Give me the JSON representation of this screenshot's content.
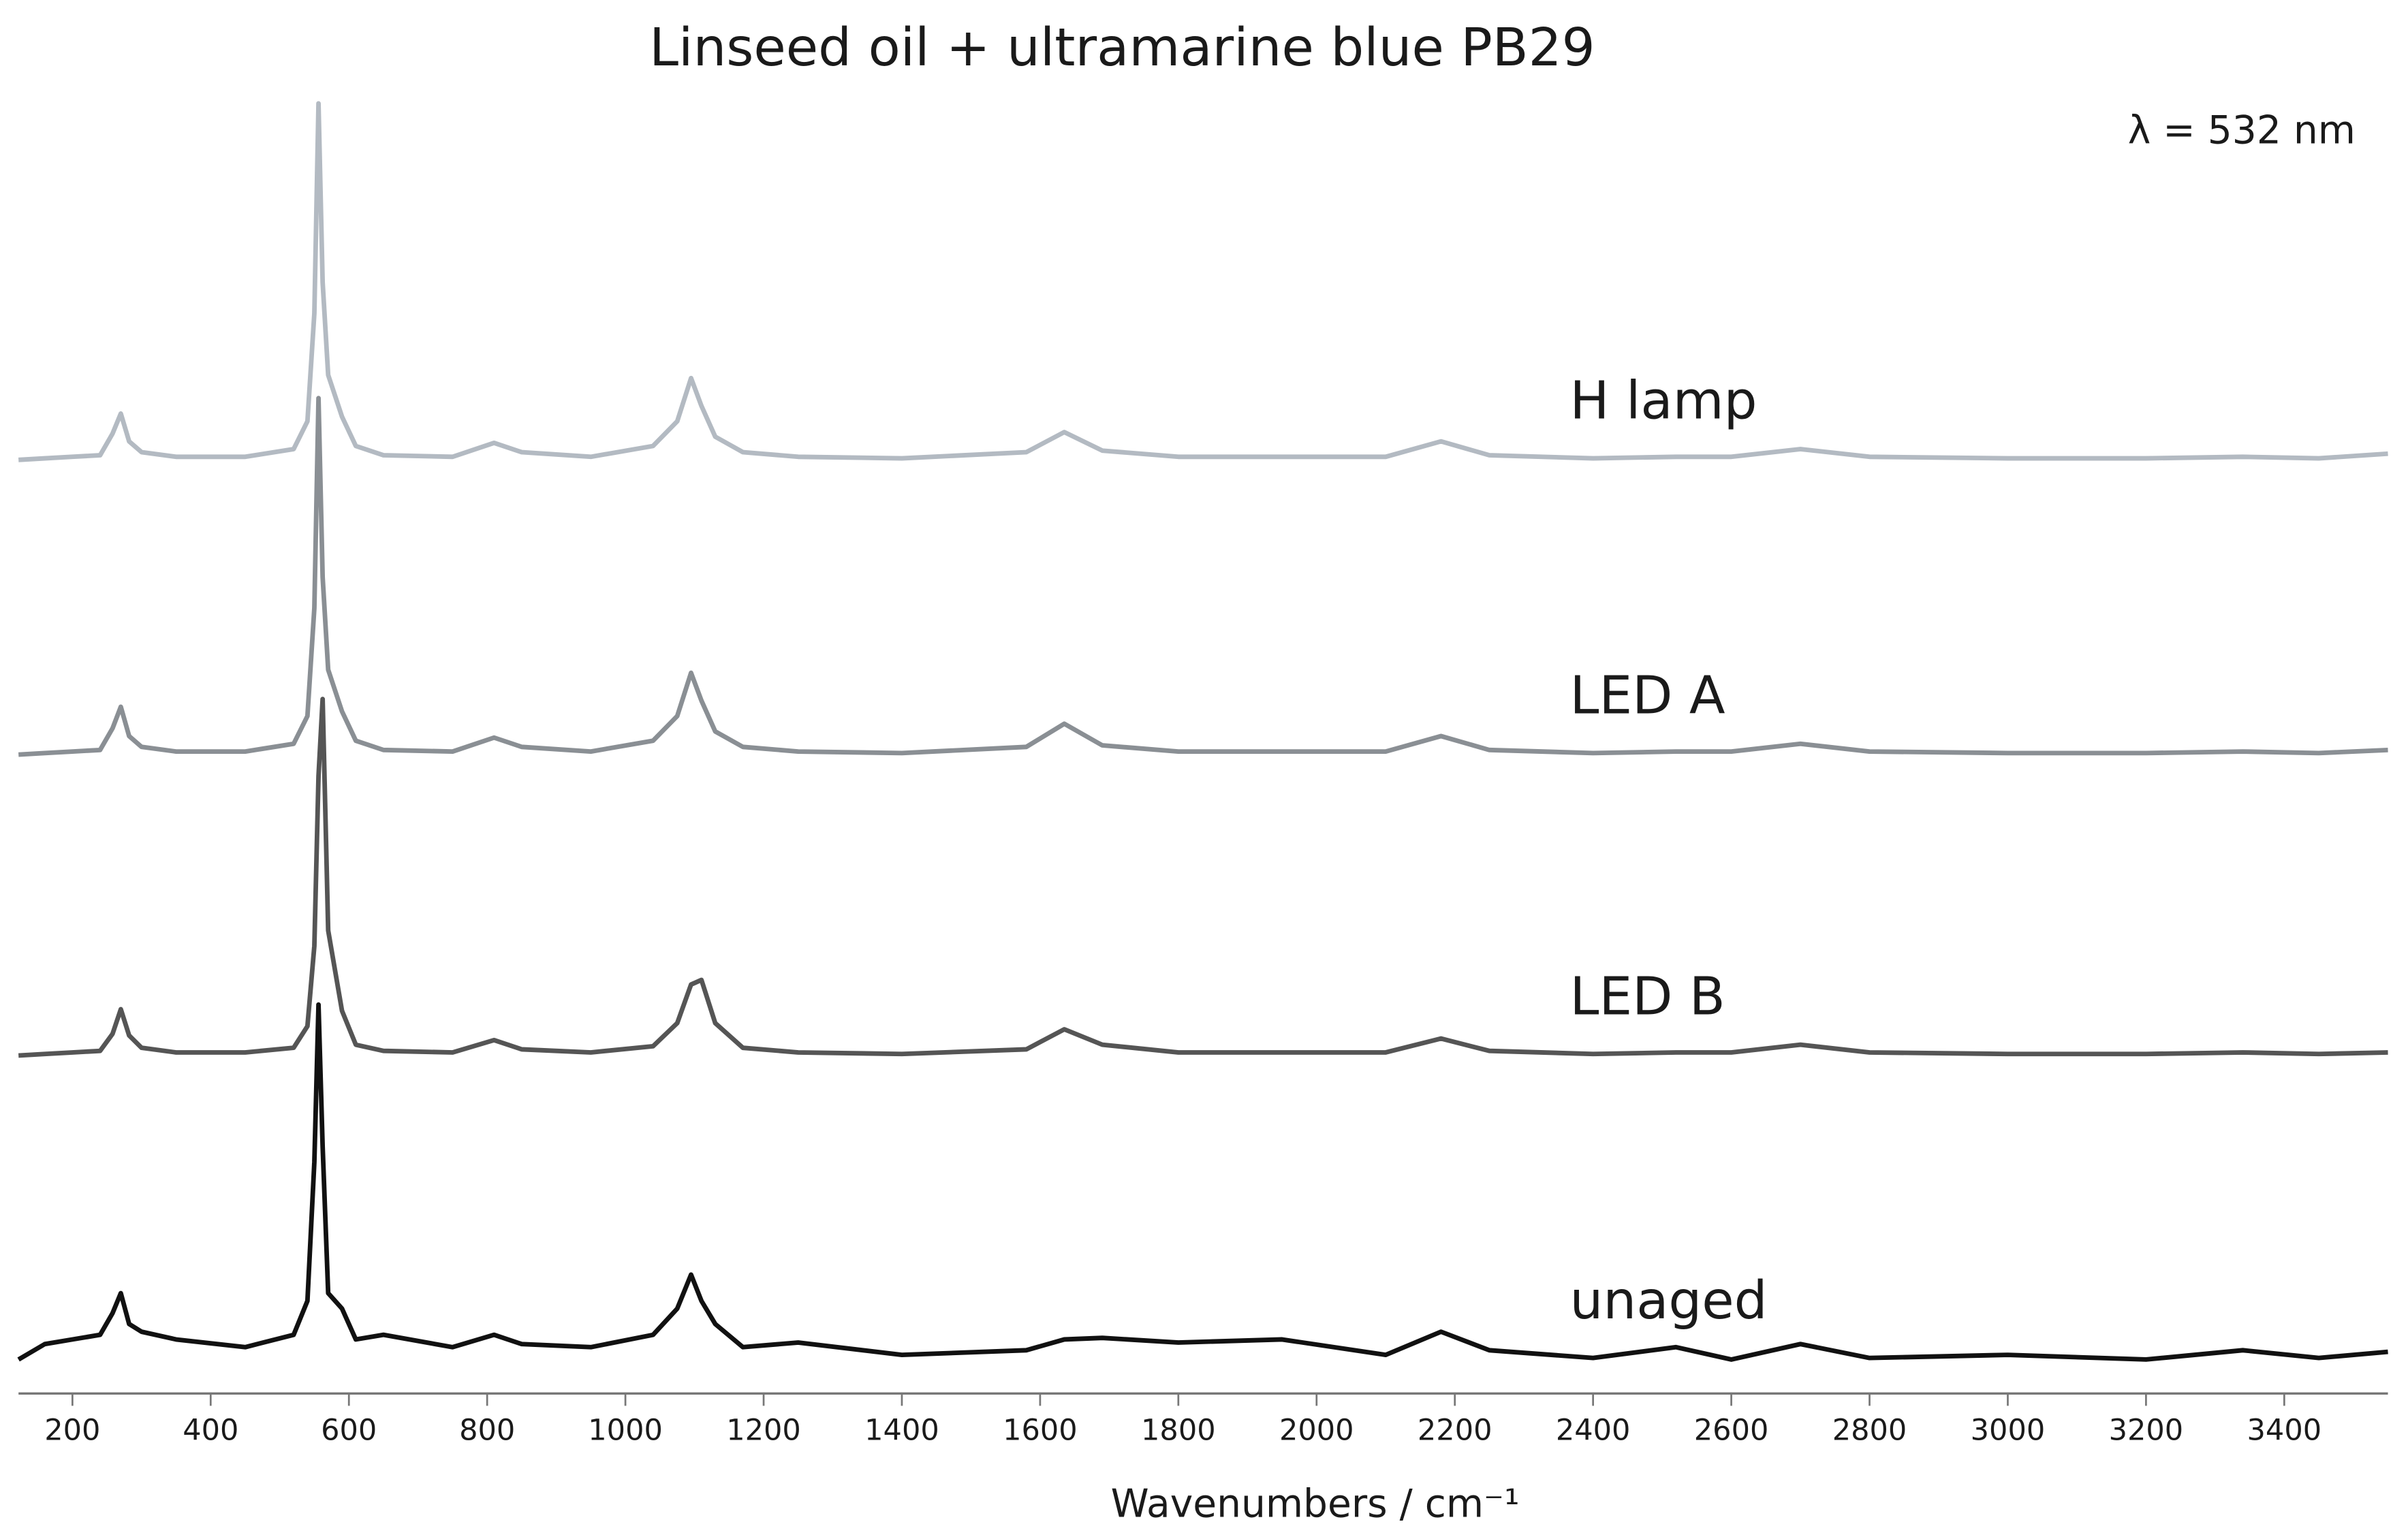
{
  "chart_data": {
    "type": "line",
    "title": "Linseed oil + ultramarine blue PB29",
    "annotation": "λ = 532 nm",
    "x_label": "Wavenumbers / cm⁻¹",
    "x": [
      122,
      160,
      200,
      240,
      258,
      270,
      282,
      300,
      350,
      450,
      520,
      540,
      550,
      556,
      562,
      570,
      590,
      610,
      650,
      750,
      810,
      850,
      950,
      1040,
      1075,
      1095,
      1110,
      1130,
      1170,
      1250,
      1400,
      1580,
      1635,
      1690,
      1800,
      1950,
      2100,
      2180,
      2250,
      2400,
      2520,
      2600,
      2700,
      2800,
      3000,
      3200,
      3340,
      3450,
      3550
    ],
    "series": [
      {
        "name": "H lamp",
        "color": "#b3bac2",
        "values": [
          605,
          606,
          607,
          608,
          622,
          635,
          617,
          610,
          607,
          607,
          612,
          630,
          700,
          836,
          720,
          660,
          633,
          614,
          608,
          607,
          616,
          610,
          607,
          614,
          630,
          658,
          640,
          620,
          610,
          607,
          606,
          610,
          623,
          611,
          607,
          607,
          607,
          617,
          608,
          606,
          607,
          607,
          612,
          607,
          606,
          606,
          607,
          606,
          609
        ]
      },
      {
        "name": "LED A",
        "color": "#8a8f94",
        "values": [
          414,
          415,
          416,
          417,
          431,
          445,
          426,
          419,
          416,
          416,
          421,
          439,
          509,
          645,
          529,
          469,
          442,
          423,
          417,
          416,
          425,
          419,
          416,
          423,
          439,
          467,
          449,
          429,
          419,
          416,
          415,
          419,
          434,
          420,
          416,
          416,
          416,
          426,
          417,
          415,
          416,
          416,
          421,
          416,
          415,
          415,
          416,
          415,
          417
        ]
      },
      {
        "name": "LED B",
        "color": "#555555",
        "values": [
          219,
          220,
          221,
          222,
          233,
          249,
          232,
          224,
          221,
          221,
          224,
          238,
          290,
          400,
          450,
          300,
          248,
          226,
          222,
          221,
          229,
          223,
          221,
          225,
          240,
          265,
          268,
          240,
          224,
          221,
          220,
          223,
          236,
          226,
          221,
          221,
          221,
          230,
          222,
          220,
          221,
          221,
          226,
          221,
          220,
          220,
          221,
          220,
          221
        ]
      },
      {
        "name": "unaged",
        "color": "#111111",
        "values": [
          22,
          32,
          35,
          38,
          52,
          65,
          45,
          40,
          35,
          30,
          38,
          60,
          150,
          252,
          160,
          65,
          55,
          35,
          38,
          30,
          38,
          32,
          30,
          38,
          55,
          77,
          60,
          45,
          30,
          33,
          25,
          28,
          35,
          36,
          33,
          35,
          25,
          40,
          28,
          23,
          30,
          22,
          32,
          23,
          25,
          22,
          28,
          23,
          27
        ]
      }
    ],
    "xlim": [
      122,
      3550
    ],
    "xticks": [
      200,
      400,
      600,
      800,
      1000,
      1200,
      1400,
      1600,
      1800,
      2000,
      2200,
      2400,
      2600,
      2800,
      3000,
      3200,
      3400
    ],
    "ylim": [
      0,
      850
    ]
  }
}
